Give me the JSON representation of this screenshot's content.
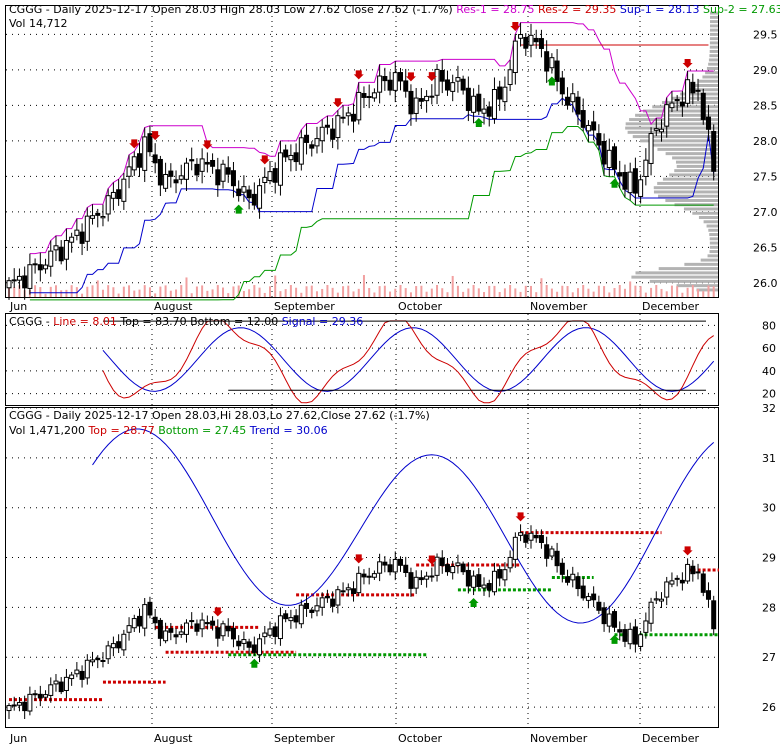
{
  "chart_data": [
    {
      "type": "candlestick",
      "panel": "price",
      "title": {
        "symbol": "CGGG",
        "text": "- Daily 2025-12-17 Open 28.03   High 28.03   Low 27.62   Close 27.62 (-1.7%)",
        "res1": "Res-1 = 28.75",
        "res2": "Res-2 = 29.35",
        "sup1": "Sup-1 = 28.13",
        "sup2": "Sup-2 = 27.63"
      },
      "volume_text": "Vol 14,712",
      "ylim": [
        25.8,
        29.9
      ],
      "y_ticks": [
        "29.5",
        "29.0",
        "28.5",
        "28.0",
        "27.5",
        "27.0",
        "26.5",
        "26.0"
      ],
      "x_labels": [
        "Jun",
        "August",
        "September",
        "October",
        "November",
        "December"
      ],
      "colors": {
        "res1": "#cc00cc",
        "res2": "#cc0000",
        "sup1": "#0000cc",
        "sup2": "#009900",
        "volume": "#f2a0a0",
        "profile": "#b3b3b3"
      }
    },
    {
      "type": "line",
      "panel": "stochastic",
      "title": {
        "symbol": "CGGG",
        "line": "Line = 8.01",
        "top": "Top = 83.70",
        "bottom": "Bottom = 12.00",
        "signal": "Signal = 29.36"
      },
      "ylim": [
        10,
        90
      ],
      "y_ticks": [
        "80",
        "60",
        "40",
        "20"
      ],
      "series": [
        {
          "name": "Line",
          "color": "#cc0000"
        },
        {
          "name": "Signal",
          "color": "#0000cc"
        }
      ]
    },
    {
      "type": "candlestick",
      "panel": "trend",
      "title": {
        "symbol": "CGGG",
        "text": "- Daily 2025-12-17 Open 28.03,Hi 28.03,Lo 27.62,Close 27.62 (-1.7%)"
      },
      "subtitle": {
        "vol": "Vol 1,471,200",
        "top": "Top = 28.77",
        "bottom": "Bottom = 27.45",
        "trend": "Trend = 30.06"
      },
      "ylim": [
        25.6,
        32.0
      ],
      "y_ticks": [
        "32",
        "31",
        "30",
        "29",
        "28",
        "27",
        "26"
      ],
      "x_labels": [
        "Jun",
        "August",
        "September",
        "October",
        "November",
        "December"
      ]
    }
  ]
}
